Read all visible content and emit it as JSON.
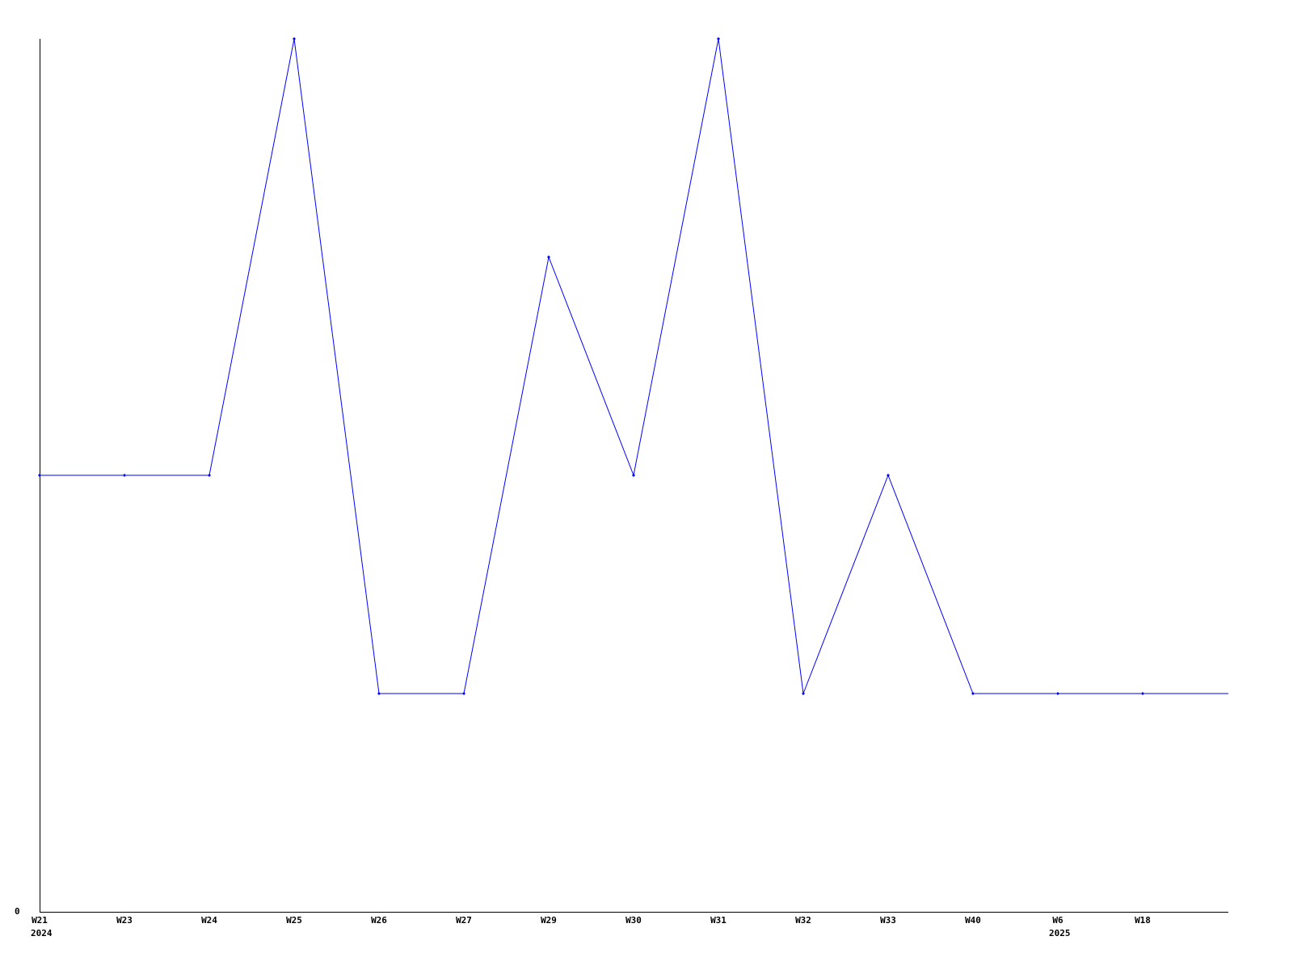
{
  "chart_data": {
    "type": "line",
    "title": "",
    "xlabel": "",
    "ylabel": "",
    "categories": [
      "W21",
      "W23",
      "W24",
      "W25",
      "W26",
      "W27",
      "W29",
      "W30",
      "W31",
      "W32",
      "W33",
      "W40",
      "W6",
      "W18"
    ],
    "year_labels": [
      {
        "category": "W21",
        "label": "2024"
      },
      {
        "category": "W6",
        "label": "2025"
      }
    ],
    "series": [
      {
        "values": [
          2,
          2,
          2,
          4,
          1,
          1,
          3,
          2,
          4,
          1,
          2,
          1,
          1,
          1
        ],
        "color": "#0000ff"
      }
    ],
    "y_tick_labels": [
      {
        "value": 0,
        "label": "0"
      }
    ],
    "ylim": [
      0,
      4
    ],
    "grid": false,
    "line_continues_past_last_point": true
  }
}
